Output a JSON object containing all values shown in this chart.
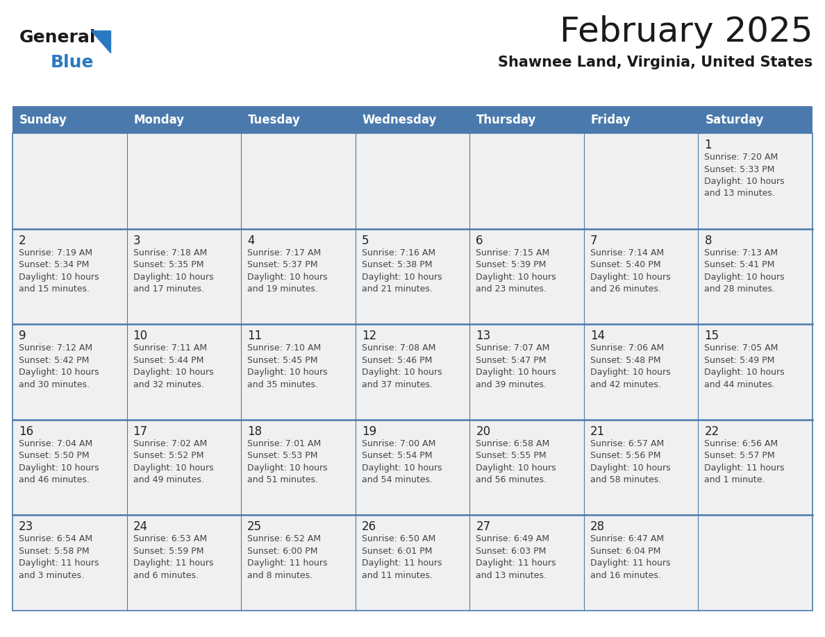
{
  "title": "February 2025",
  "subtitle": "Shawnee Land, Virginia, United States",
  "days_of_week": [
    "Sunday",
    "Monday",
    "Tuesday",
    "Wednesday",
    "Thursday",
    "Friday",
    "Saturday"
  ],
  "header_bg": "#4a7aad",
  "header_text": "#ffffff",
  "cell_bg_light": "#f0f0f0",
  "cell_bg_white": "#ffffff",
  "border_color": "#4a7aad",
  "row_divider_color": "#4a7aad",
  "text_color": "#444444",
  "day_num_color": "#222222",
  "calendar_data": [
    [
      {
        "day": null,
        "info": null
      },
      {
        "day": null,
        "info": null
      },
      {
        "day": null,
        "info": null
      },
      {
        "day": null,
        "info": null
      },
      {
        "day": null,
        "info": null
      },
      {
        "day": null,
        "info": null
      },
      {
        "day": 1,
        "info": "Sunrise: 7:20 AM\nSunset: 5:33 PM\nDaylight: 10 hours\nand 13 minutes."
      }
    ],
    [
      {
        "day": 2,
        "info": "Sunrise: 7:19 AM\nSunset: 5:34 PM\nDaylight: 10 hours\nand 15 minutes."
      },
      {
        "day": 3,
        "info": "Sunrise: 7:18 AM\nSunset: 5:35 PM\nDaylight: 10 hours\nand 17 minutes."
      },
      {
        "day": 4,
        "info": "Sunrise: 7:17 AM\nSunset: 5:37 PM\nDaylight: 10 hours\nand 19 minutes."
      },
      {
        "day": 5,
        "info": "Sunrise: 7:16 AM\nSunset: 5:38 PM\nDaylight: 10 hours\nand 21 minutes."
      },
      {
        "day": 6,
        "info": "Sunrise: 7:15 AM\nSunset: 5:39 PM\nDaylight: 10 hours\nand 23 minutes."
      },
      {
        "day": 7,
        "info": "Sunrise: 7:14 AM\nSunset: 5:40 PM\nDaylight: 10 hours\nand 26 minutes."
      },
      {
        "day": 8,
        "info": "Sunrise: 7:13 AM\nSunset: 5:41 PM\nDaylight: 10 hours\nand 28 minutes."
      }
    ],
    [
      {
        "day": 9,
        "info": "Sunrise: 7:12 AM\nSunset: 5:42 PM\nDaylight: 10 hours\nand 30 minutes."
      },
      {
        "day": 10,
        "info": "Sunrise: 7:11 AM\nSunset: 5:44 PM\nDaylight: 10 hours\nand 32 minutes."
      },
      {
        "day": 11,
        "info": "Sunrise: 7:10 AM\nSunset: 5:45 PM\nDaylight: 10 hours\nand 35 minutes."
      },
      {
        "day": 12,
        "info": "Sunrise: 7:08 AM\nSunset: 5:46 PM\nDaylight: 10 hours\nand 37 minutes."
      },
      {
        "day": 13,
        "info": "Sunrise: 7:07 AM\nSunset: 5:47 PM\nDaylight: 10 hours\nand 39 minutes."
      },
      {
        "day": 14,
        "info": "Sunrise: 7:06 AM\nSunset: 5:48 PM\nDaylight: 10 hours\nand 42 minutes."
      },
      {
        "day": 15,
        "info": "Sunrise: 7:05 AM\nSunset: 5:49 PM\nDaylight: 10 hours\nand 44 minutes."
      }
    ],
    [
      {
        "day": 16,
        "info": "Sunrise: 7:04 AM\nSunset: 5:50 PM\nDaylight: 10 hours\nand 46 minutes."
      },
      {
        "day": 17,
        "info": "Sunrise: 7:02 AM\nSunset: 5:52 PM\nDaylight: 10 hours\nand 49 minutes."
      },
      {
        "day": 18,
        "info": "Sunrise: 7:01 AM\nSunset: 5:53 PM\nDaylight: 10 hours\nand 51 minutes."
      },
      {
        "day": 19,
        "info": "Sunrise: 7:00 AM\nSunset: 5:54 PM\nDaylight: 10 hours\nand 54 minutes."
      },
      {
        "day": 20,
        "info": "Sunrise: 6:58 AM\nSunset: 5:55 PM\nDaylight: 10 hours\nand 56 minutes."
      },
      {
        "day": 21,
        "info": "Sunrise: 6:57 AM\nSunset: 5:56 PM\nDaylight: 10 hours\nand 58 minutes."
      },
      {
        "day": 22,
        "info": "Sunrise: 6:56 AM\nSunset: 5:57 PM\nDaylight: 11 hours\nand 1 minute."
      }
    ],
    [
      {
        "day": 23,
        "info": "Sunrise: 6:54 AM\nSunset: 5:58 PM\nDaylight: 11 hours\nand 3 minutes."
      },
      {
        "day": 24,
        "info": "Sunrise: 6:53 AM\nSunset: 5:59 PM\nDaylight: 11 hours\nand 6 minutes."
      },
      {
        "day": 25,
        "info": "Sunrise: 6:52 AM\nSunset: 6:00 PM\nDaylight: 11 hours\nand 8 minutes."
      },
      {
        "day": 26,
        "info": "Sunrise: 6:50 AM\nSunset: 6:01 PM\nDaylight: 11 hours\nand 11 minutes."
      },
      {
        "day": 27,
        "info": "Sunrise: 6:49 AM\nSunset: 6:03 PM\nDaylight: 11 hours\nand 13 minutes."
      },
      {
        "day": 28,
        "info": "Sunrise: 6:47 AM\nSunset: 6:04 PM\nDaylight: 11 hours\nand 16 minutes."
      },
      {
        "day": null,
        "info": null
      }
    ]
  ],
  "logo_general_color": "#1a1a1a",
  "logo_blue_color": "#2b79c2",
  "logo_triangle_color": "#2b79c2",
  "title_fontsize": 36,
  "subtitle_fontsize": 15,
  "header_fontsize": 12,
  "day_num_fontsize": 12,
  "info_fontsize": 9
}
